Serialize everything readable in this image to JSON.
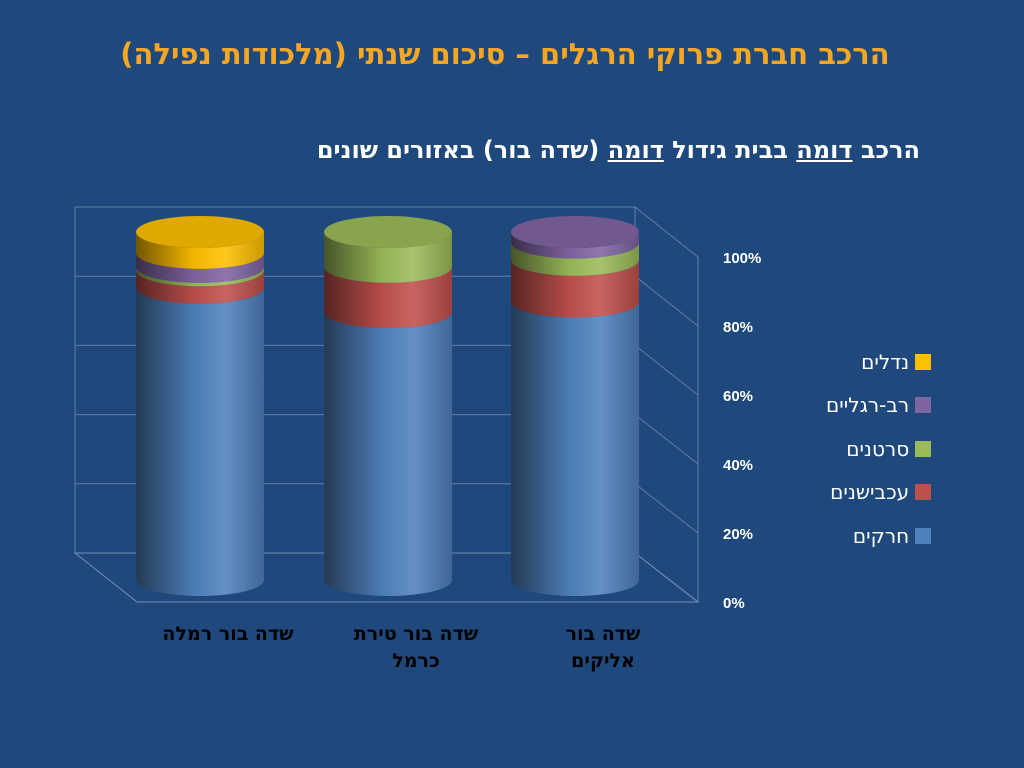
{
  "title": "הרכב חברת פרוקי הרגלים – סיכום שנתי (מלכודות נפילה)",
  "subtitle": {
    "part1": "הרכב ",
    "part2": "דומה",
    "part3": " בבית גידול ",
    "part4": "דומה",
    "part5": " (שדה בור) באזורים שונים"
  },
  "chart_data": {
    "type": "bar",
    "stacked": "percent",
    "style": "3d-cylinder",
    "categories": [
      "שדה בור רמלה",
      "שדה בור טירת כרמל",
      "שדה בור אליקים"
    ],
    "series": [
      {
        "name": "חרקים",
        "color": "#4f81bd",
        "values": [
          84,
          77,
          80
        ]
      },
      {
        "name": "עכבישנים",
        "color": "#c0504d",
        "values": [
          5,
          13,
          12
        ]
      },
      {
        "name": "סרטנים",
        "color": "#9bbb59",
        "values": [
          1,
          10,
          5
        ]
      },
      {
        "name": "רב-רגליים",
        "color": "#8064a2",
        "values": [
          4,
          0,
          3
        ]
      },
      {
        "name": "נדלים",
        "color": "#ffc000",
        "values": [
          6,
          0,
          0
        ]
      }
    ],
    "ylim": [
      0,
      100
    ],
    "yticks": [
      "0%",
      "20%",
      "40%",
      "60%",
      "80%",
      "100%"
    ],
    "grid": true,
    "legend_position": "right"
  }
}
